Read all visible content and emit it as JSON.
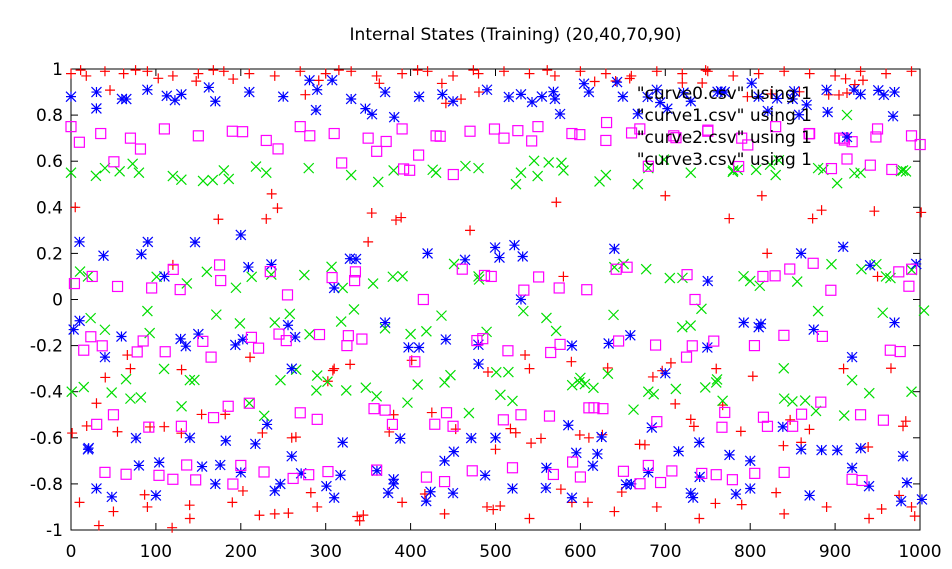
{
  "chart_data": {
    "type": "scatter",
    "title": "Internal States (Training) (20,40,70,90)",
    "xlabel": "",
    "ylabel": "",
    "xlim": [
      0,
      1000
    ],
    "ylim": [
      -1,
      1
    ],
    "x_ticks": [
      0,
      100,
      200,
      300,
      400,
      500,
      600,
      700,
      800,
      900,
      1000
    ],
    "y_ticks": [
      -1,
      -0.8,
      -0.6,
      -0.4,
      -0.2,
      0,
      0.2,
      0.4,
      0.6,
      0.8,
      1
    ],
    "x_tick_labels": [
      "0",
      "100",
      "200",
      "300",
      "400",
      "500",
      "600",
      "700",
      "800",
      "900",
      "1000"
    ],
    "y_tick_labels": [
      "-1",
      "-0.8",
      "-0.6",
      "-0.4",
      "-0.2",
      "0",
      "0.2",
      "0.4",
      "0.6",
      "0.8",
      "1"
    ],
    "grid": false,
    "legend_position": "top-right",
    "series": [
      {
        "name": "\"curve0.csv\" using 1",
        "marker": "plus",
        "color": "#ff0000",
        "band_centers": [
          0.98,
          0.9,
          0.4,
          -0.3,
          -0.45,
          -0.58,
          -0.88,
          -0.95
        ],
        "points": [
          [
            0,
            0.98
          ],
          [
            18,
            0.97
          ],
          [
            40,
            0.99
          ],
          [
            62,
            0.98
          ],
          [
            90,
            0.99
          ],
          [
            120,
            0.97
          ],
          [
            150,
            0.98
          ],
          [
            180,
            0.99
          ],
          [
            210,
            0.98
          ],
          [
            240,
            0.97
          ],
          [
            270,
            0.99
          ],
          [
            300,
            0.98
          ],
          [
            330,
            0.99
          ],
          [
            360,
            0.97
          ],
          [
            390,
            0.98
          ],
          [
            420,
            0.99
          ],
          [
            450,
            0.97
          ],
          [
            480,
            0.98
          ],
          [
            510,
            0.99
          ],
          [
            540,
            0.98
          ],
          [
            570,
            0.97
          ],
          [
            600,
            0.99
          ],
          [
            630,
            0.98
          ],
          [
            660,
            0.97
          ],
          [
            690,
            0.99
          ],
          [
            720,
            0.98
          ],
          [
            750,
            0.99
          ],
          [
            780,
            0.97
          ],
          [
            810,
            0.98
          ],
          [
            840,
            0.99
          ],
          [
            870,
            0.98
          ],
          [
            900,
            0.97
          ],
          [
            930,
            0.99
          ],
          [
            960,
            0.98
          ],
          [
            990,
            0.99
          ],
          [
            5,
            0.4
          ],
          [
            120,
            0.15
          ],
          [
            230,
            0.35
          ],
          [
            350,
            0.25
          ],
          [
            470,
            0.3
          ],
          [
            580,
            0.1
          ],
          [
            700,
            0.45
          ],
          [
            820,
            0.2
          ],
          [
            950,
            0.1
          ],
          [
            30,
            -0.45
          ],
          [
            130,
            -0.58
          ],
          [
            260,
            -0.6
          ],
          [
            380,
            -0.5
          ],
          [
            500,
            -0.65
          ],
          [
            610,
            -0.6
          ],
          [
            730,
            -0.52
          ],
          [
            860,
            -0.62
          ],
          [
            980,
            -0.55
          ],
          [
            10,
            -0.88
          ],
          [
            50,
            -0.92
          ],
          [
            90,
            -0.9
          ],
          [
            140,
            -0.95
          ],
          [
            190,
            -0.88
          ],
          [
            240,
            -0.93
          ],
          [
            290,
            -0.9
          ],
          [
            340,
            -0.96
          ],
          [
            390,
            -0.88
          ],
          [
            440,
            -0.93
          ],
          [
            490,
            -0.9
          ],
          [
            540,
            -0.95
          ],
          [
            590,
            -0.88
          ],
          [
            640,
            -0.92
          ],
          [
            690,
            -0.9
          ],
          [
            740,
            -0.95
          ],
          [
            790,
            -0.89
          ],
          [
            840,
            -0.93
          ],
          [
            890,
            -0.9
          ],
          [
            940,
            -0.95
          ],
          [
            990,
            -0.9
          ],
          [
            70,
            -0.3
          ],
          [
            310,
            -0.3
          ],
          [
            540,
            -0.3
          ],
          [
            760,
            -0.3
          ],
          [
            910,
            -0.3
          ]
        ]
      },
      {
        "name": "\"curve1.csv\" using 1",
        "marker": "cross",
        "color": "#00dd00",
        "band_centers": [
          0.55,
          0.1,
          -0.1,
          -0.35,
          -0.45
        ],
        "points": [
          [
            0,
            0.55
          ],
          [
            40,
            0.57
          ],
          [
            80,
            0.55
          ],
          [
            130,
            0.52
          ],
          [
            180,
            0.56
          ],
          [
            230,
            0.55
          ],
          [
            280,
            0.57
          ],
          [
            330,
            0.54
          ],
          [
            380,
            0.56
          ],
          [
            430,
            0.55
          ],
          [
            480,
            0.57
          ],
          [
            530,
            0.55
          ],
          [
            580,
            0.56
          ],
          [
            630,
            0.54
          ],
          [
            680,
            0.57
          ],
          [
            730,
            0.55
          ],
          [
            780,
            0.56
          ],
          [
            830,
            0.54
          ],
          [
            880,
            0.57
          ],
          [
            930,
            0.55
          ],
          [
            980,
            0.56
          ],
          [
            20,
            0.1
          ],
          [
            90,
            -0.05
          ],
          [
            160,
            0.12
          ],
          [
            240,
            -0.1
          ],
          [
            320,
            0.05
          ],
          [
            400,
            -0.15
          ],
          [
            480,
            0.1
          ],
          [
            560,
            -0.08
          ],
          [
            640,
            0.14
          ],
          [
            720,
            -0.12
          ],
          [
            800,
            0.08
          ],
          [
            880,
            -0.05
          ],
          [
            960,
            0.1
          ],
          [
            15,
            -0.38
          ],
          [
            70,
            -0.43
          ],
          [
            140,
            -0.35
          ],
          [
            210,
            -0.45
          ],
          [
            290,
            -0.33
          ],
          [
            360,
            -0.42
          ],
          [
            440,
            -0.36
          ],
          [
            520,
            -0.44
          ],
          [
            600,
            -0.34
          ],
          [
            680,
            -0.4
          ],
          [
            760,
            -0.36
          ],
          [
            840,
            -0.43
          ],
          [
            920,
            -0.35
          ],
          [
            990,
            -0.4
          ]
        ]
      },
      {
        "name": "\"curve2.csv\" using 1",
        "marker": "star",
        "color": "#0000ff",
        "band_centers": [
          0.9,
          0.85,
          0.2,
          -0.15,
          -0.6,
          -0.7,
          -0.82
        ],
        "points": [
          [
            0,
            0.88
          ],
          [
            30,
            0.9
          ],
          [
            60,
            0.87
          ],
          [
            90,
            0.91
          ],
          [
            130,
            0.89
          ],
          [
            170,
            0.86
          ],
          [
            210,
            0.9
          ],
          [
            250,
            0.88
          ],
          [
            290,
            0.91
          ],
          [
            330,
            0.87
          ],
          [
            370,
            0.9
          ],
          [
            410,
            0.88
          ],
          [
            450,
            0.86
          ],
          [
            490,
            0.91
          ],
          [
            530,
            0.89
          ],
          [
            570,
            0.87
          ],
          [
            610,
            0.9
          ],
          [
            650,
            0.88
          ],
          [
            690,
            0.91
          ],
          [
            730,
            0.86
          ],
          [
            770,
            0.9
          ],
          [
            810,
            0.88
          ],
          [
            850,
            0.87
          ],
          [
            890,
            0.91
          ],
          [
            930,
            0.89
          ],
          [
            970,
            0.9
          ],
          [
            10,
            0.25
          ],
          [
            110,
            0.1
          ],
          [
            200,
            0.28
          ],
          [
            310,
            0.05
          ],
          [
            420,
            0.2
          ],
          [
            530,
            0.0
          ],
          [
            640,
            0.22
          ],
          [
            750,
            0.08
          ],
          [
            860,
            0.2
          ],
          [
            970,
            -0.1
          ],
          [
            40,
            -0.25
          ],
          [
            150,
            -0.15
          ],
          [
            260,
            -0.3
          ],
          [
            370,
            -0.1
          ],
          [
            480,
            -0.28
          ],
          [
            590,
            -0.2
          ],
          [
            700,
            -0.32
          ],
          [
            810,
            -0.12
          ],
          [
            920,
            -0.25
          ],
          [
            20,
            -0.65
          ],
          [
            80,
            -0.72
          ],
          [
            140,
            -0.6
          ],
          [
            200,
            -0.75
          ],
          [
            260,
            -0.68
          ],
          [
            320,
            -0.62
          ],
          [
            380,
            -0.78
          ],
          [
            440,
            -0.7
          ],
          [
            500,
            -0.6
          ],
          [
            560,
            -0.73
          ],
          [
            620,
            -0.67
          ],
          [
            680,
            -0.75
          ],
          [
            740,
            -0.62
          ],
          [
            800,
            -0.7
          ],
          [
            860,
            -0.65
          ],
          [
            920,
            -0.73
          ],
          [
            980,
            -0.68
          ],
          [
            30,
            -0.82
          ],
          [
            100,
            -0.85
          ],
          [
            170,
            -0.8
          ],
          [
            240,
            -0.83
          ],
          [
            310,
            -0.86
          ],
          [
            380,
            -0.8
          ],
          [
            450,
            -0.84
          ],
          [
            520,
            -0.82
          ],
          [
            590,
            -0.86
          ],
          [
            660,
            -0.8
          ],
          [
            730,
            -0.84
          ],
          [
            800,
            -0.82
          ],
          [
            870,
            -0.85
          ],
          [
            940,
            -0.81
          ]
        ]
      },
      {
        "name": "\"curve3.csv\" using 1",
        "marker": "square",
        "color": "#ff00ff",
        "band_centers": [
          0.72,
          0.6,
          0.1,
          -0.2,
          -0.5,
          -0.75
        ],
        "points": [
          [
            0,
            0.75
          ],
          [
            35,
            0.72
          ],
          [
            70,
            0.7
          ],
          [
            110,
            0.74
          ],
          [
            150,
            0.71
          ],
          [
            190,
            0.73
          ],
          [
            230,
            0.69
          ],
          [
            270,
            0.75
          ],
          [
            310,
            0.72
          ],
          [
            350,
            0.7
          ],
          [
            390,
            0.74
          ],
          [
            430,
            0.71
          ],
          [
            470,
            0.73
          ],
          [
            510,
            0.7
          ],
          [
            550,
            0.75
          ],
          [
            590,
            0.72
          ],
          [
            630,
            0.69
          ],
          [
            670,
            0.74
          ],
          [
            710,
            0.71
          ],
          [
            750,
            0.73
          ],
          [
            790,
            0.7
          ],
          [
            830,
            0.75
          ],
          [
            870,
            0.72
          ],
          [
            910,
            0.7
          ],
          [
            950,
            0.74
          ],
          [
            990,
            0.71
          ],
          [
            25,
            0.1
          ],
          [
            95,
            0.05
          ],
          [
            175,
            0.15
          ],
          [
            255,
            0.02
          ],
          [
            335,
            0.12
          ],
          [
            415,
            0.0
          ],
          [
            495,
            0.1
          ],
          [
            575,
            0.05
          ],
          [
            655,
            0.14
          ],
          [
            735,
            0.0
          ],
          [
            815,
            0.1
          ],
          [
            895,
            0.04
          ],
          [
            975,
            0.12
          ],
          [
            15,
            -0.22
          ],
          [
            85,
            -0.18
          ],
          [
            165,
            -0.25
          ],
          [
            245,
            -0.15
          ],
          [
            325,
            -0.2
          ],
          [
            405,
            -0.27
          ],
          [
            485,
            -0.17
          ],
          [
            565,
            -0.23
          ],
          [
            645,
            -0.18
          ],
          [
            725,
            -0.25
          ],
          [
            805,
            -0.2
          ],
          [
            885,
            -0.16
          ],
          [
            965,
            -0.22
          ],
          [
            50,
            -0.5
          ],
          [
            130,
            -0.55
          ],
          [
            210,
            -0.45
          ],
          [
            290,
            -0.52
          ],
          [
            370,
            -0.48
          ],
          [
            450,
            -0.55
          ],
          [
            530,
            -0.5
          ],
          [
            610,
            -0.47
          ],
          [
            690,
            -0.53
          ],
          [
            770,
            -0.49
          ],
          [
            850,
            -0.55
          ],
          [
            930,
            -0.5
          ],
          [
            40,
            -0.75
          ],
          [
            120,
            -0.78
          ],
          [
            200,
            -0.72
          ],
          [
            280,
            -0.76
          ],
          [
            360,
            -0.74
          ],
          [
            440,
            -0.79
          ],
          [
            520,
            -0.73
          ],
          [
            600,
            -0.77
          ],
          [
            680,
            -0.72
          ],
          [
            760,
            -0.76
          ],
          [
            840,
            -0.75
          ],
          [
            920,
            -0.78
          ]
        ]
      }
    ]
  }
}
